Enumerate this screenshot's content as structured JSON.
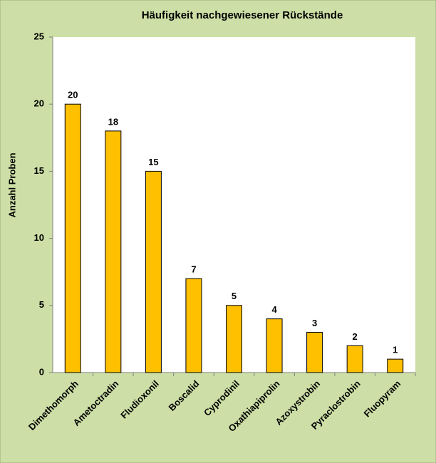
{
  "chart_data": {
    "type": "bar",
    "title": "Häufigkeit nachgewiesener Rückstände",
    "y_label": "Anzahl Proben",
    "categories": [
      "Dimethomorph",
      "Ametoctradin",
      "Fludioxonil",
      "Boscalid",
      "Cyprodinil",
      "Oxathiapiprolin",
      "Azoxystrobin",
      "Pyraclostrobin",
      "Fluopyram"
    ],
    "values": [
      20,
      18,
      15,
      7,
      5,
      4,
      3,
      2,
      1
    ],
    "color": "#ffc000",
    "ylim": [
      0,
      25
    ],
    "yticks": [
      0,
      5,
      10,
      15,
      20,
      25
    ],
    "grid": false
  }
}
